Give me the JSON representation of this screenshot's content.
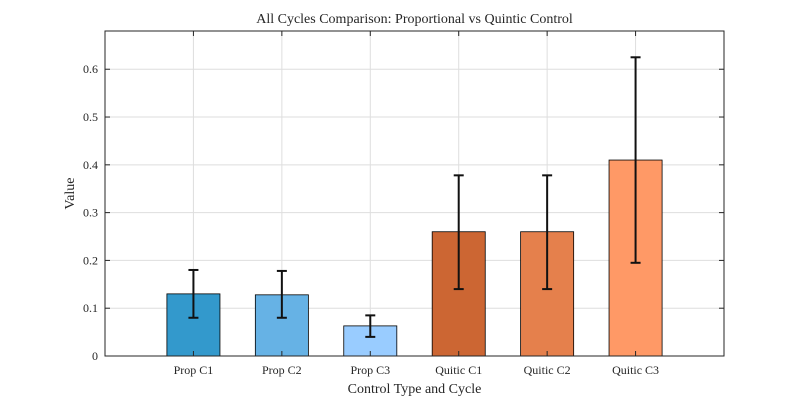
{
  "chart_data": {
    "type": "bar",
    "title": "All Cycles Comparison: Proportional vs Quintic Control",
    "xlabel": "Control Type and Cycle",
    "ylabel": "Value",
    "categories": [
      "Prop C1",
      "Prop C2",
      "Prop C3",
      "Quitic C1",
      "Quitic C2",
      "Quitic C3"
    ],
    "values": [
      0.13,
      0.128,
      0.063,
      0.26,
      0.26,
      0.41
    ],
    "error_low": [
      0.08,
      0.08,
      0.04,
      0.14,
      0.14,
      0.195
    ],
    "error_high": [
      0.18,
      0.178,
      0.085,
      0.378,
      0.378,
      0.625
    ],
    "bar_colors": [
      "#3399cc",
      "#66b2e5",
      "#99ccff",
      "#cc6633",
      "#e5804c",
      "#ff9966"
    ],
    "ylim": [
      0,
      0.68
    ],
    "yticks": [
      0,
      0.1,
      0.2,
      0.3,
      0.4,
      0.5,
      0.6
    ],
    "ytick_labels": [
      "0",
      "0.1",
      "0.2",
      "0.3",
      "0.4",
      "0.5",
      "0.6"
    ],
    "xlim": [
      0,
      7
    ],
    "grid": true
  }
}
